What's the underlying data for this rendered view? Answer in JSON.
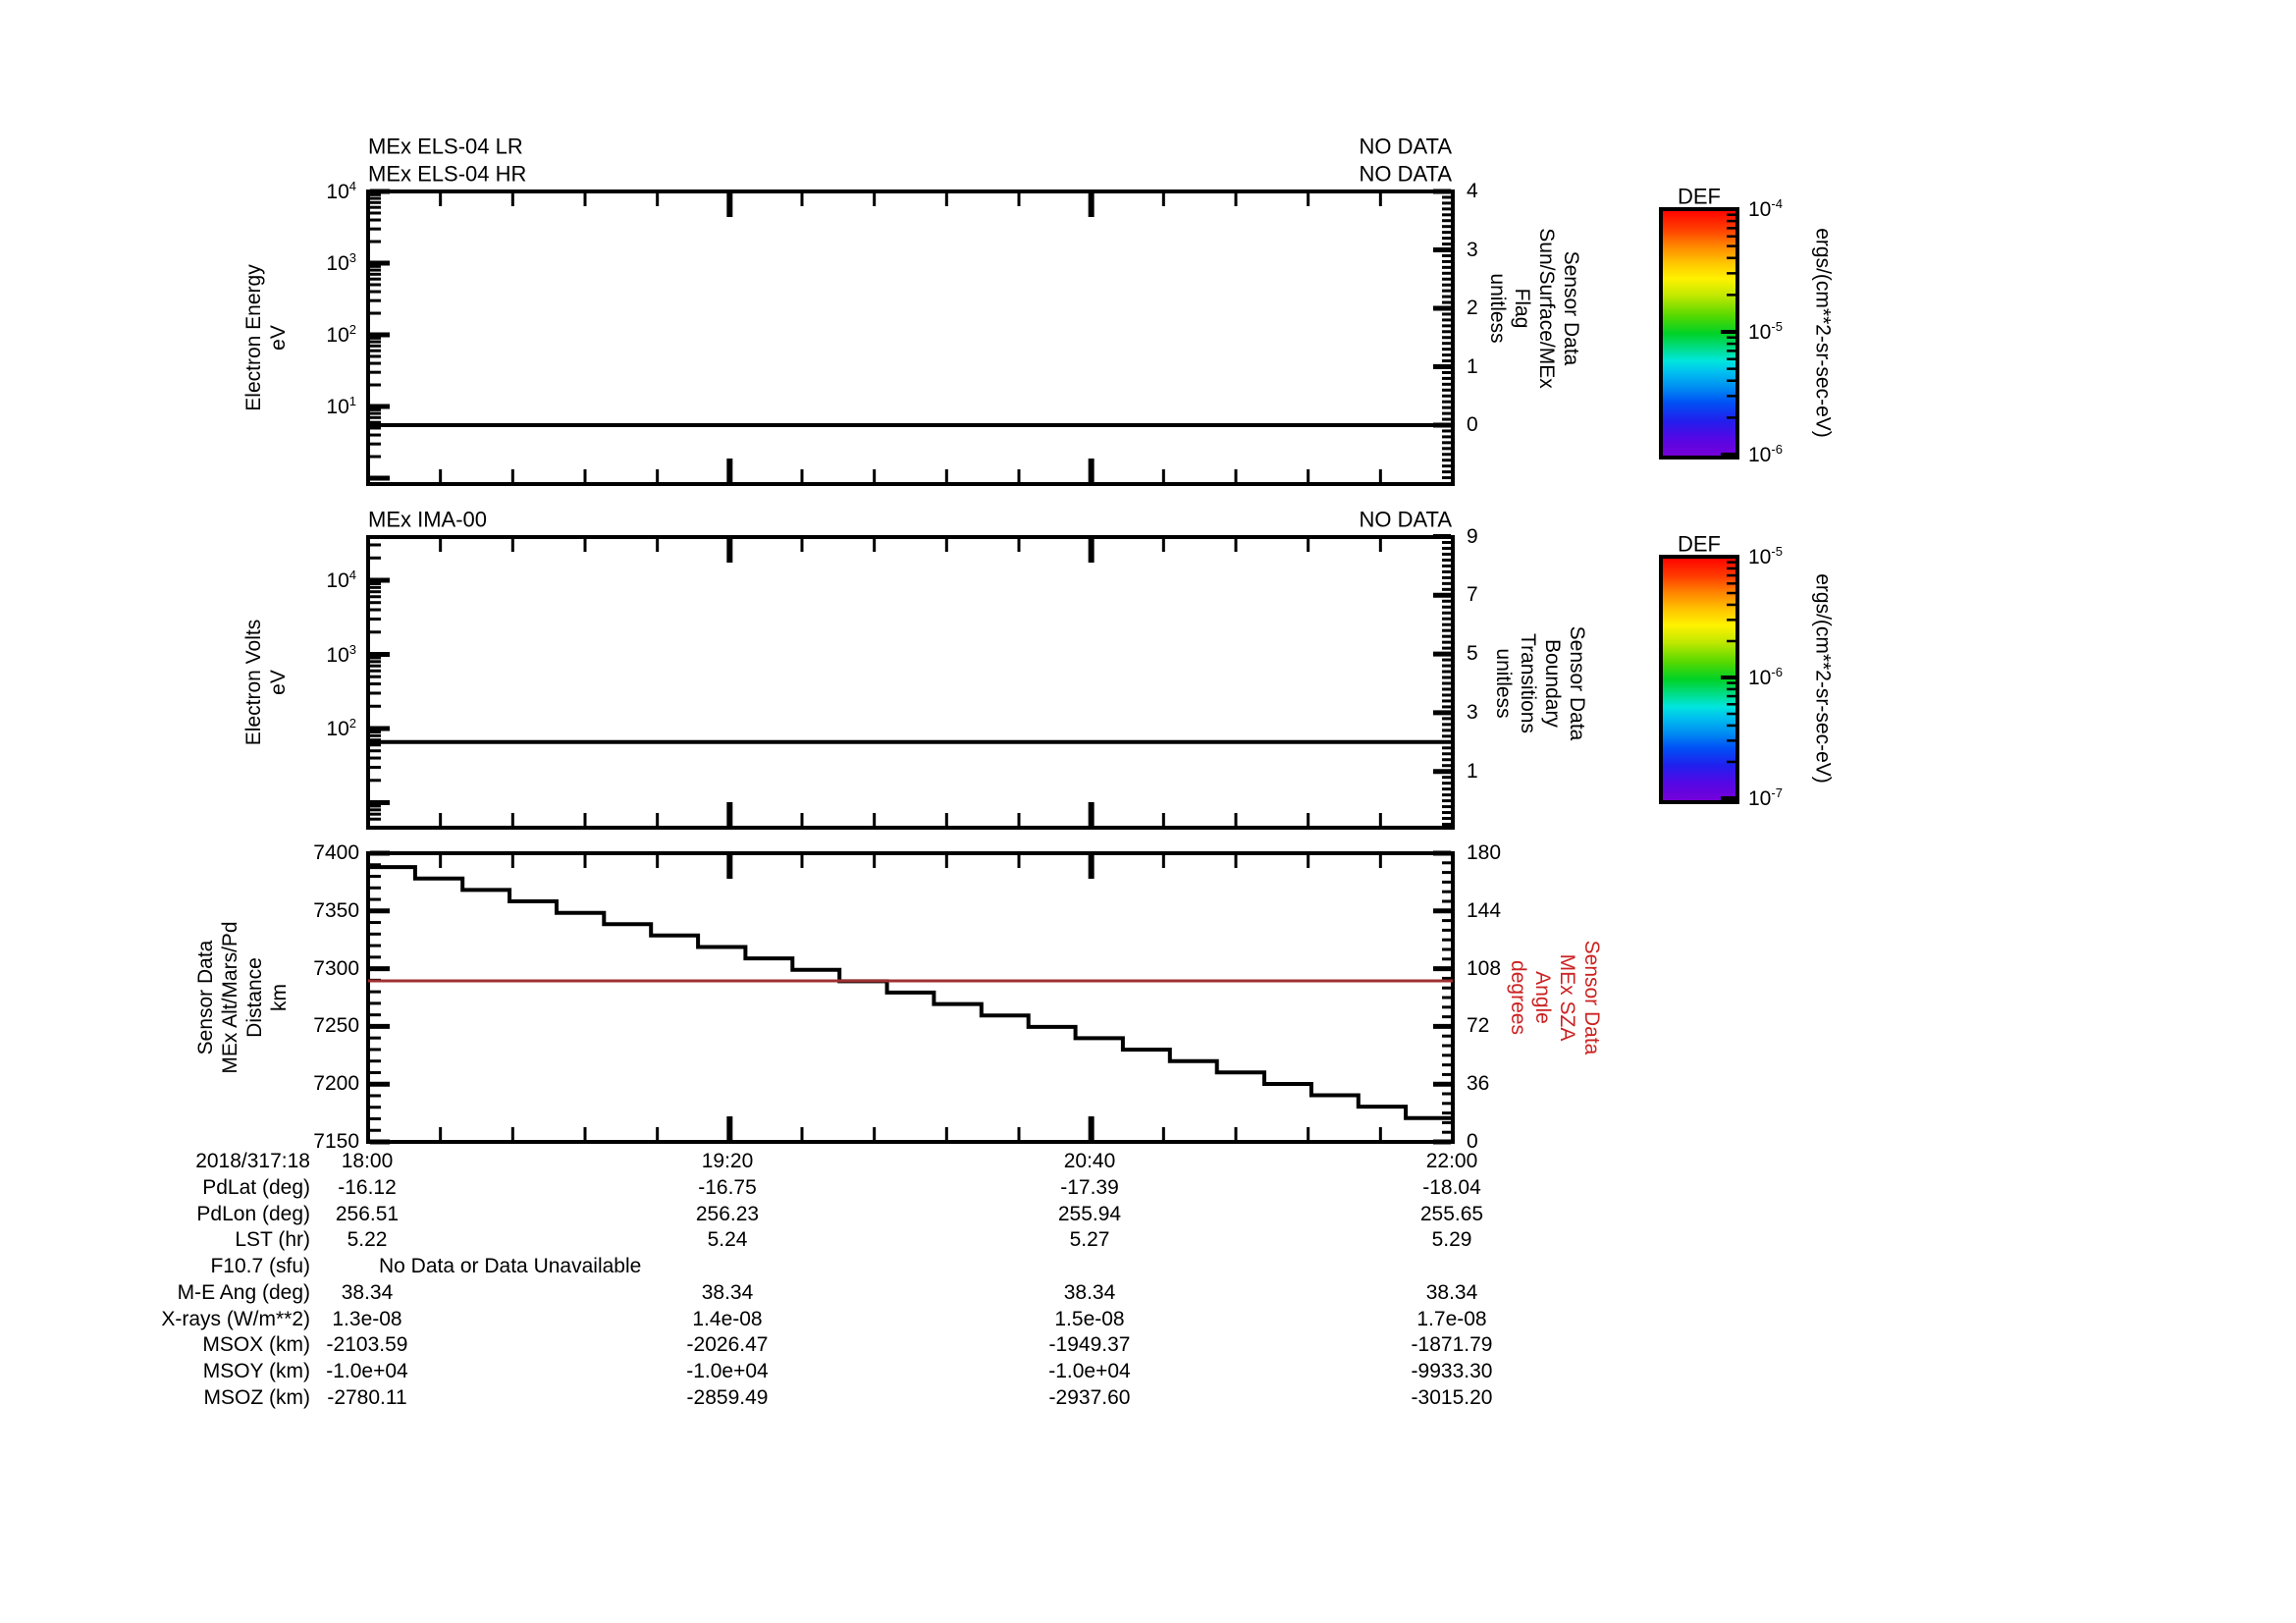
{
  "colors": {
    "axis": "#000000",
    "text": "#000000",
    "red_line": "#a03030",
    "red_text": "#cc2222",
    "background": "#ffffff"
  },
  "panels": [
    {
      "titles": [
        "MEx ELS-04 LR",
        "MEx ELS-04 HR"
      ],
      "status_labels": [
        "NO DATA",
        "NO DATA"
      ],
      "left_axis": {
        "label_lines": [
          "Electron Energy",
          "eV"
        ],
        "ticks": [
          "10^4",
          "10^3",
          "10^2",
          "10^1"
        ]
      },
      "right_axis": {
        "label_lines": [
          "Sensor Data",
          "Sun/Surface/MEx",
          "Flag",
          "unitless"
        ],
        "ticks": [
          "4",
          "3",
          "2",
          "1",
          "0"
        ]
      }
    },
    {
      "titles": [
        "MEx IMA-00"
      ],
      "status_labels": [
        "NO DATA"
      ],
      "left_axis": {
        "label_lines": [
          "Electron Volts",
          "eV"
        ],
        "ticks": [
          "10^4",
          "10^3",
          "10^2"
        ]
      },
      "right_axis": {
        "label_lines": [
          "Sensor Data",
          "Boundary",
          "Transitions",
          "unitless"
        ],
        "ticks": [
          "9",
          "7",
          "5",
          "3",
          "1"
        ]
      }
    },
    {
      "titles": [],
      "status_labels": [],
      "left_axis": {
        "label_lines": [
          "Sensor Data",
          "MEx Alt/Mars/Pd",
          "Distance",
          "km"
        ],
        "ticks": [
          "7400",
          "7350",
          "7300",
          "7250",
          "7200",
          "7150"
        ]
      },
      "right_axis": {
        "label_lines": [
          "Sensor Data",
          "MEx SZA",
          "Angle",
          "degrees"
        ],
        "ticks": [
          "180",
          "144",
          "108",
          "72",
          "36",
          "0"
        ]
      }
    }
  ],
  "colorbars": [
    {
      "title": "DEF",
      "unit": "ergs/(cm**2-sr-sec-eV)",
      "ticks": [
        "10^-4",
        "10^-5",
        "10^-6"
      ]
    },
    {
      "title": "DEF",
      "unit": "ergs/(cm**2-sr-sec-eV)",
      "ticks": [
        "10^-5",
        "10^-6",
        "10^-7"
      ]
    }
  ],
  "table": {
    "rows": [
      {
        "label": "2018/317:18",
        "values": [
          "18:00",
          "19:20",
          "20:40",
          "22:00"
        ]
      },
      {
        "label": "PdLat (deg)",
        "values": [
          "-16.12",
          "-16.75",
          "-17.39",
          "-18.04"
        ]
      },
      {
        "label": "PdLon (deg)",
        "values": [
          "256.51",
          "256.23",
          "255.94",
          "255.65"
        ]
      },
      {
        "label": "LST (hr)",
        "values": [
          "5.22",
          "5.24",
          "5.27",
          "5.29"
        ]
      },
      {
        "label": "F10.7 (sfu)",
        "span_value": "No Data or Data Unavailable"
      },
      {
        "label": "M-E Ang (deg)",
        "values": [
          "38.34",
          "38.34",
          "38.34",
          "38.34"
        ]
      },
      {
        "label": "X-rays (W/m**2)",
        "values": [
          "1.3e-08",
          "1.4e-08",
          "1.5e-08",
          "1.7e-08"
        ]
      },
      {
        "label": "MSOX (km)",
        "values": [
          "-2103.59",
          "-2026.47",
          "-1949.37",
          "-1871.79"
        ]
      },
      {
        "label": "MSOY (km)",
        "values": [
          "-1.0e+04",
          "-1.0e+04",
          "-1.0e+04",
          "-9933.30"
        ]
      },
      {
        "label": "MSOZ (km)",
        "values": [
          "-2780.11",
          "-2859.49",
          "-2937.60",
          "-3015.20"
        ]
      }
    ]
  },
  "chart_data": [
    {
      "type": "line",
      "title": "MEx ELS-04 LR / MEx ELS-04 HR",
      "status": "NO DATA",
      "x_tick_labels": [
        "18:00",
        "19:20",
        "20:40",
        "22:00"
      ],
      "x_range_minutes": [
        0,
        240
      ],
      "ylabel": "Electron Energy (eV)",
      "yscale": "log",
      "ylim": [
        0.8,
        10000
      ],
      "y2label": "Sensor Data Sun/Surface/MEx Flag (unitless)",
      "y2lim": [
        -1,
        4
      ],
      "series": [
        {
          "name": "Sun/Surface/MEx Flag",
          "axis": "y2",
          "color": "#000000",
          "points": [
            [
              0,
              0
            ],
            [
              240,
              0
            ]
          ]
        }
      ]
    },
    {
      "type": "line",
      "title": "MEx IMA-00",
      "status": "NO DATA",
      "x_tick_labels": [
        "18:00",
        "19:20",
        "20:40",
        "22:00"
      ],
      "x_range_minutes": [
        0,
        240
      ],
      "ylabel": "Electron Volts (eV)",
      "yscale": "log",
      "ylim": [
        5,
        40000
      ],
      "y2label": "Sensor Data Boundary Transitions (unitless)",
      "y2lim": [
        -1,
        9
      ],
      "series": [
        {
          "name": "Boundary Transitions",
          "axis": "y2",
          "color": "#000000",
          "points": [
            [
              0,
              2
            ],
            [
              240,
              2
            ]
          ]
        }
      ]
    },
    {
      "type": "line",
      "title": "",
      "x_tick_labels": [
        "18:00",
        "19:20",
        "20:40",
        "22:00"
      ],
      "x_range_minutes": [
        0,
        240
      ],
      "ylabel": "Sensor Data MEx Alt/Mars/Pd Distance (km)",
      "ylim": [
        7150,
        7400
      ],
      "y2label": "Sensor Data MEx SZA Angle (degrees)",
      "y2lim": [
        0,
        180
      ],
      "series": [
        {
          "name": "MEx Alt/Mars/Pd Distance",
          "axis": "y1",
          "step": "after",
          "color": "#000000",
          "points": [
            [
              0,
              7388
            ],
            [
              10.4,
              7378.1
            ],
            [
              20.9,
              7368.2
            ],
            [
              31.3,
              7358.3
            ],
            [
              41.7,
              7348.4
            ],
            [
              52.2,
              7338.5
            ],
            [
              62.6,
              7328.7
            ],
            [
              73,
              7318.8
            ],
            [
              83.5,
              7308.9
            ],
            [
              93.9,
              7299
            ],
            [
              104.3,
              7289.1
            ],
            [
              114.8,
              7279.3
            ],
            [
              125.2,
              7269.4
            ],
            [
              135.7,
              7259.5
            ],
            [
              146.1,
              7249.6
            ],
            [
              156.5,
              7239.8
            ],
            [
              167,
              7229.9
            ],
            [
              177.4,
              7220
            ],
            [
              187.8,
              7210.1
            ],
            [
              198.3,
              7200.2
            ],
            [
              208.7,
              7190.4
            ],
            [
              219.1,
              7180.5
            ],
            [
              229.6,
              7170.6
            ],
            [
              240,
              7160.7
            ]
          ]
        },
        {
          "name": "MEx SZA Angle",
          "axis": "y2",
          "color": "#a03030",
          "points": [
            [
              0,
              100.4
            ],
            [
              240,
              100.4
            ]
          ]
        }
      ]
    }
  ]
}
